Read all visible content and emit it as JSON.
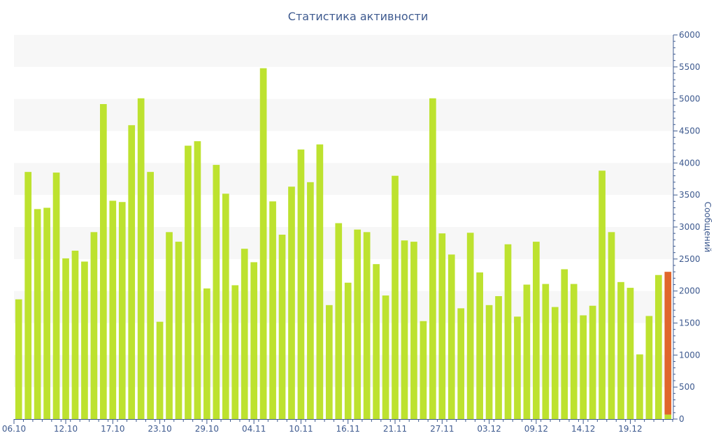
{
  "chart_data": {
    "type": "bar",
    "title": "Статистика активности",
    "xlabel": "",
    "ylabel": "Сообщений",
    "y_axis_position": "right",
    "ylim": [
      0,
      6000
    ],
    "y_ticks": [
      0,
      500,
      1000,
      1500,
      2000,
      2500,
      3000,
      3500,
      4000,
      4500,
      5000,
      5500,
      6000
    ],
    "grid": "alternating horizontal bands",
    "legend": "none",
    "x_tick_labels": [
      "06.10",
      "12.10",
      "17.10",
      "23.10",
      "29.10",
      "04.11",
      "10.11",
      "16.11",
      "21.11",
      "27.11",
      "03.12",
      "09.12",
      "14.12",
      "19.12"
    ],
    "x_tick_indices": [
      0,
      5,
      10,
      15,
      20,
      25,
      30,
      35,
      40,
      45,
      50,
      55,
      60,
      65
    ],
    "colors": {
      "bar": "#bde22f",
      "highlight": "#e0662c",
      "axis": "#3e5a8f",
      "band": "#f7f7f7"
    },
    "series": [
      {
        "values": [
          1870,
          3860,
          3280,
          3300,
          3850,
          2510,
          2630,
          2460,
          2920,
          4920,
          3410,
          3390,
          4590,
          5010,
          3860,
          1520,
          2920,
          2770,
          4270,
          4340,
          2040,
          3970,
          3520,
          2090,
          2660,
          2450,
          5480,
          3400,
          2880,
          3630,
          4210,
          3700,
          4290,
          1780,
          3060,
          2130,
          2960,
          2920,
          2420,
          1930,
          3800,
          2790,
          2770,
          1530,
          5010,
          2900,
          2570,
          1730,
          2910,
          2290,
          1780,
          1920,
          2730,
          1600,
          2100,
          2770,
          2110,
          1750,
          2340,
          2110,
          1620,
          1770,
          3880,
          2920,
          2140,
          2050,
          1010,
          1610,
          2250,
          70
        ]
      },
      {
        "values": [
          0,
          0,
          0,
          0,
          0,
          0,
          0,
          0,
          0,
          0,
          0,
          0,
          0,
          0,
          0,
          0,
          0,
          0,
          0,
          0,
          0,
          0,
          0,
          0,
          0,
          0,
          0,
          0,
          0,
          0,
          0,
          0,
          0,
          0,
          0,
          0,
          0,
          0,
          0,
          0,
          0,
          0,
          0,
          0,
          0,
          0,
          0,
          0,
          0,
          0,
          0,
          0,
          0,
          0,
          0,
          0,
          0,
          0,
          0,
          0,
          0,
          0,
          0,
          0,
          0,
          0,
          0,
          0,
          0,
          2230
        ]
      }
    ]
  }
}
